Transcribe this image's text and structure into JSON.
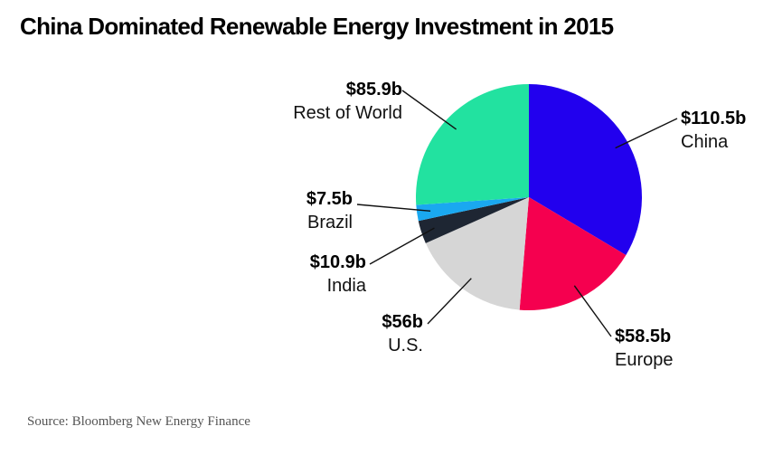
{
  "title": "China Dominated Renewable Energy Investment in 2015",
  "source": "Source: Bloomberg New Energy Finance",
  "chart_data": {
    "type": "pie",
    "title": "China Dominated Renewable Energy Investment in 2015",
    "unit": "$b",
    "slices": [
      {
        "name": "China",
        "value": 110.5,
        "value_label": "$110.5b",
        "color": "#2200ee"
      },
      {
        "name": "Europe",
        "value": 58.5,
        "value_label": "$58.5b",
        "color": "#f5004f"
      },
      {
        "name": "U.S.",
        "value": 56,
        "value_label": "$56b",
        "color": "#d6d6d6"
      },
      {
        "name": "India",
        "value": 10.9,
        "value_label": "$10.9b",
        "color": "#1e2633"
      },
      {
        "name": "Brazil",
        "value": 7.5,
        "value_label": "$7.5b",
        "color": "#1aa8f0"
      },
      {
        "name": "Rest of World",
        "value": 85.9,
        "value_label": "$85.9b",
        "color": "#22e2a0"
      }
    ],
    "start_angle": "12 o'clock",
    "direction": "clockwise"
  }
}
